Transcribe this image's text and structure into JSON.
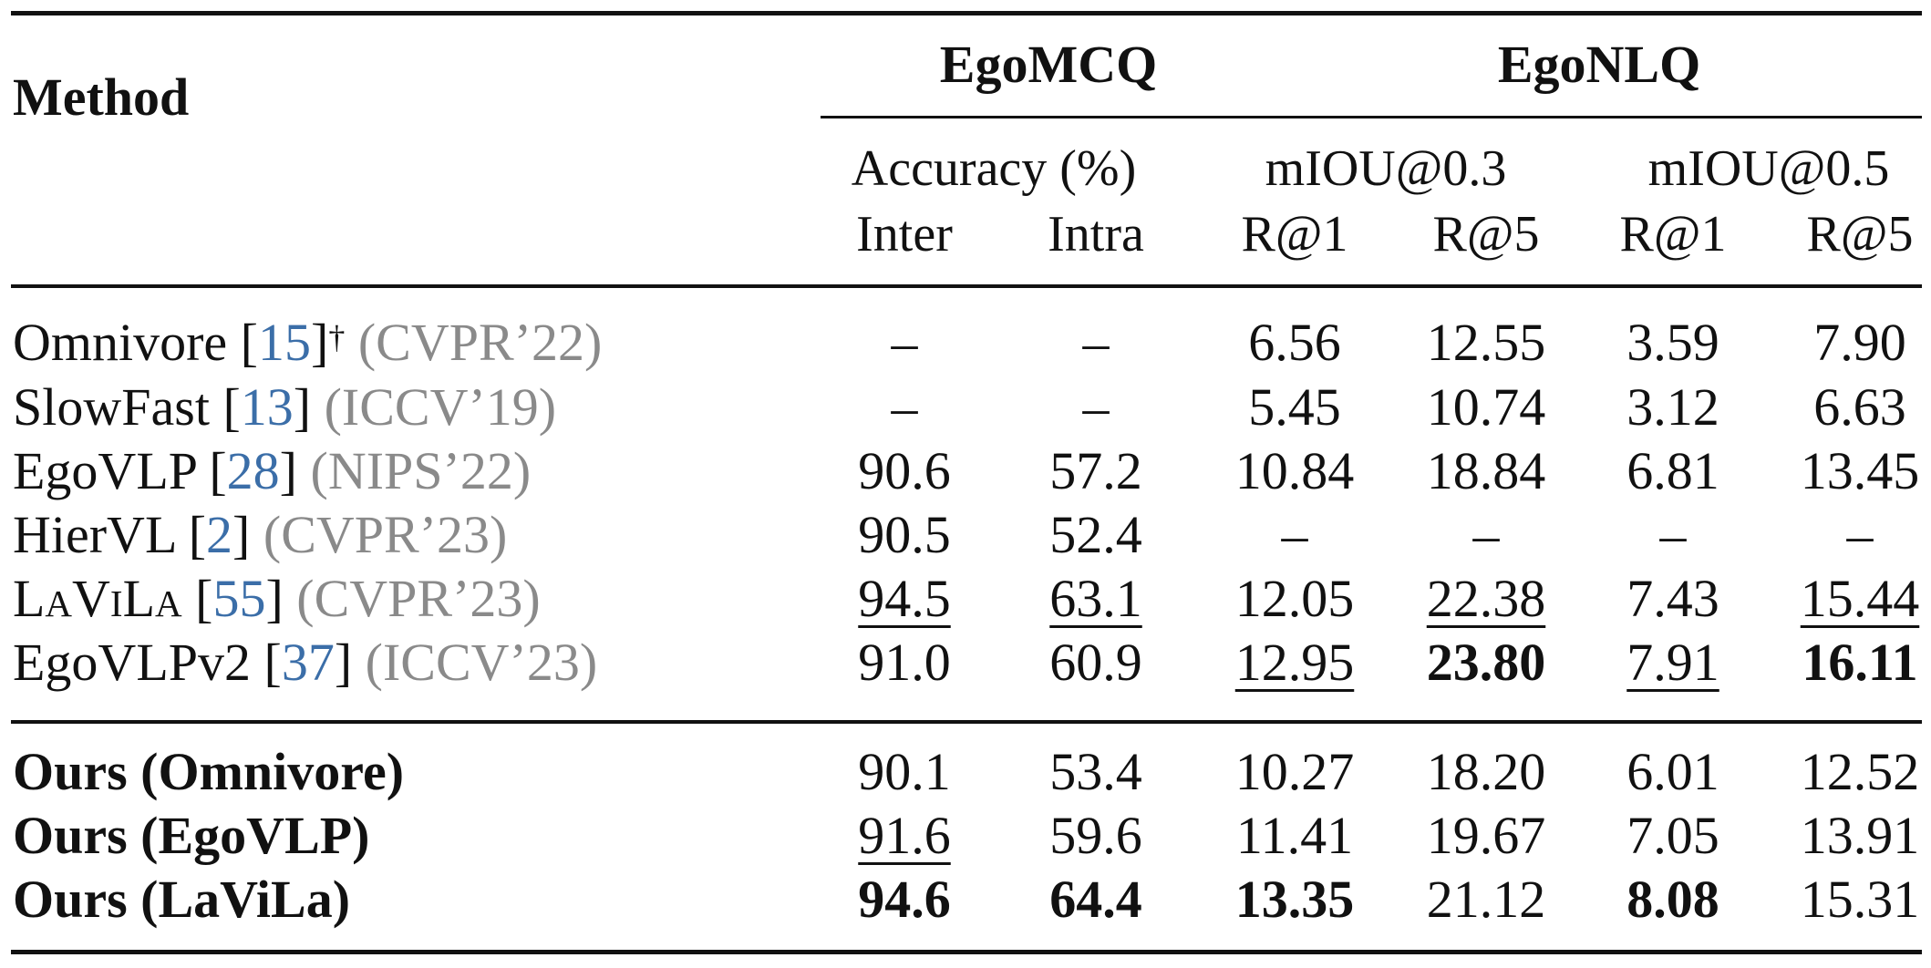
{
  "header": {
    "method_label": "Method",
    "groups": [
      "EgoMCQ",
      "EgoNLQ"
    ],
    "metric_groups": [
      "Accuracy (%)",
      "mIOU@0.3",
      "mIOU@0.5"
    ],
    "columns": [
      "Inter",
      "Intra",
      "R@1",
      "R@5",
      "R@1",
      "R@5"
    ]
  },
  "dagger": "†",
  "rows": [
    {
      "name": "Omnivore [",
      "cite": "15",
      "close": "]",
      "venue": "(CVPR’22)",
      "values": [
        "–",
        "–",
        "6.56",
        "12.55",
        "3.59",
        "7.90"
      ]
    },
    {
      "name": "SlowFast [",
      "cite": "13",
      "close": "]",
      "venue": "(ICCV’19)",
      "values": [
        "–",
        "–",
        "5.45",
        "10.74",
        "3.12",
        "6.63"
      ]
    },
    {
      "name": "EgoVLP [",
      "cite": "28",
      "close": "]",
      "venue": "(NIPS’22)",
      "values": [
        "90.6",
        "57.2",
        "10.84",
        "18.84",
        "6.81",
        "13.45"
      ]
    },
    {
      "name": "HierVL [",
      "cite": "2",
      "close": "]",
      "venue": "(CVPR’23)",
      "values": [
        "90.5",
        "52.4",
        "–",
        "–",
        "–",
        "–"
      ]
    },
    {
      "name": "LaViLa [",
      "cite": "55",
      "close": "]",
      "venue": "(CVPR’23)",
      "values": [
        "94.5",
        "63.1",
        "12.05",
        "22.38",
        "7.43",
        "15.44"
      ],
      "underline": [
        true,
        true,
        false,
        true,
        false,
        true
      ]
    },
    {
      "name": "EgoVLPv2 [",
      "cite": "37",
      "close": "]",
      "venue": "(ICCV’23)",
      "values": [
        "91.0",
        "60.9",
        "12.95",
        "23.80",
        "7.91",
        "16.11"
      ],
      "underline": [
        false,
        false,
        true,
        false,
        true,
        false
      ],
      "bold": [
        false,
        false,
        false,
        true,
        false,
        true
      ]
    }
  ],
  "ours": [
    {
      "name": "Ours (Omnivore)",
      "values": [
        "90.1",
        "53.4",
        "10.27",
        "18.20",
        "6.01",
        "12.52"
      ]
    },
    {
      "name": "Ours (EgoVLP)",
      "values": [
        "91.6",
        "59.6",
        "11.41",
        "19.67",
        "7.05",
        "13.91"
      ],
      "underline": [
        true,
        false,
        false,
        false,
        false,
        false
      ]
    },
    {
      "name": "Ours (LaViLa)",
      "values": [
        "94.6",
        "64.4",
        "13.35",
        "21.12",
        "8.08",
        "15.31"
      ],
      "bold": [
        true,
        true,
        true,
        false,
        true,
        false
      ]
    }
  ]
}
